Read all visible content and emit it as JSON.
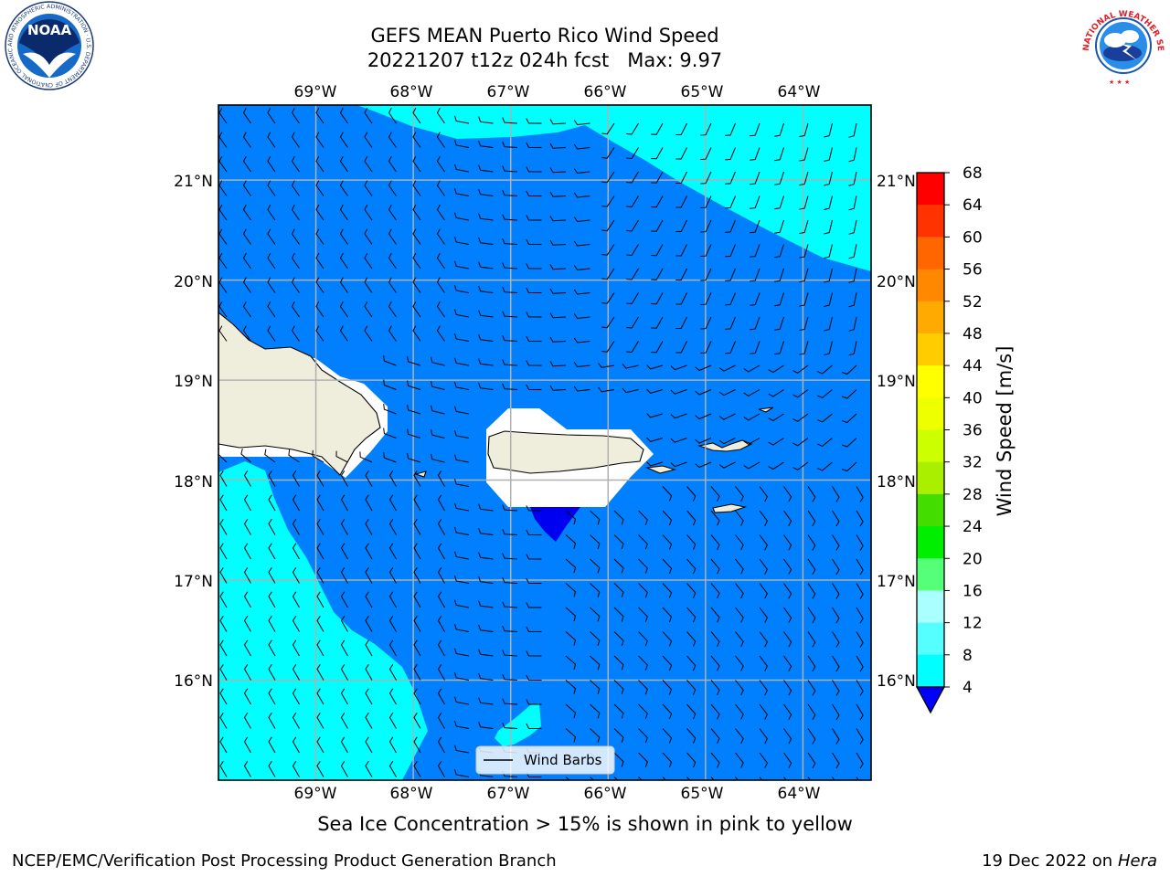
{
  "title": {
    "line1": "GEFS MEAN Puerto Rico Wind Speed",
    "line2": "20221207 t12z 024h fcst   Max: 9.97"
  },
  "map": {
    "lon_ticks": [
      "69°W",
      "68°W",
      "67°W",
      "66°W",
      "65°W",
      "64°W"
    ],
    "lat_ticks": [
      "21°N",
      "20°N",
      "19°N",
      "18°N",
      "17°N",
      "16°N"
    ],
    "lon_range": [
      -70.0,
      -63.3
    ],
    "lat_range": [
      15.0,
      21.75
    ],
    "colors": {
      "speed_4_8": "#0080ff",
      "speed_8_12": "#00ffff",
      "speed_below_4": "#0000f0",
      "land": "#efeedc",
      "grid": "#b0b0b0",
      "barbs": "#000000"
    },
    "legend": {
      "label": "Wind Barbs"
    }
  },
  "colorbar": {
    "label": "Wind Speed [m/s]",
    "ticks": [
      "68",
      "64",
      "60",
      "56",
      "52",
      "48",
      "44",
      "40",
      "36",
      "32",
      "28",
      "24",
      "20",
      "16",
      "12",
      "8",
      "4"
    ],
    "colors": [
      "#ff0000",
      "#ff3300",
      "#ff6600",
      "#ff8800",
      "#ffaa00",
      "#ffcc00",
      "#ffff00",
      "#eeff00",
      "#ccff00",
      "#aaee00",
      "#44dd00",
      "#00ee00",
      "#55ff77",
      "#aaffff",
      "#55ffff",
      "#00ffff",
      "#0088ff"
    ],
    "extend_color": "#0000ff"
  },
  "subcaption": "Sea Ice Concentration > 15% is shown in pink to yellow",
  "footer": {
    "left": "NCEP/EMC/Verification Post Processing Product Generation Branch",
    "date": "19 Dec 2022 on",
    "host": "Hera"
  },
  "logos": {
    "noaa_text": "NOAA",
    "noaa_ring": "NATIONAL OCEANIC AND ATMOSPHERIC ADMINISTRATION · U.S. DEPARTMENT OF COMMERCE",
    "nws_ring": "NATIONAL WEATHER SERVICE"
  }
}
